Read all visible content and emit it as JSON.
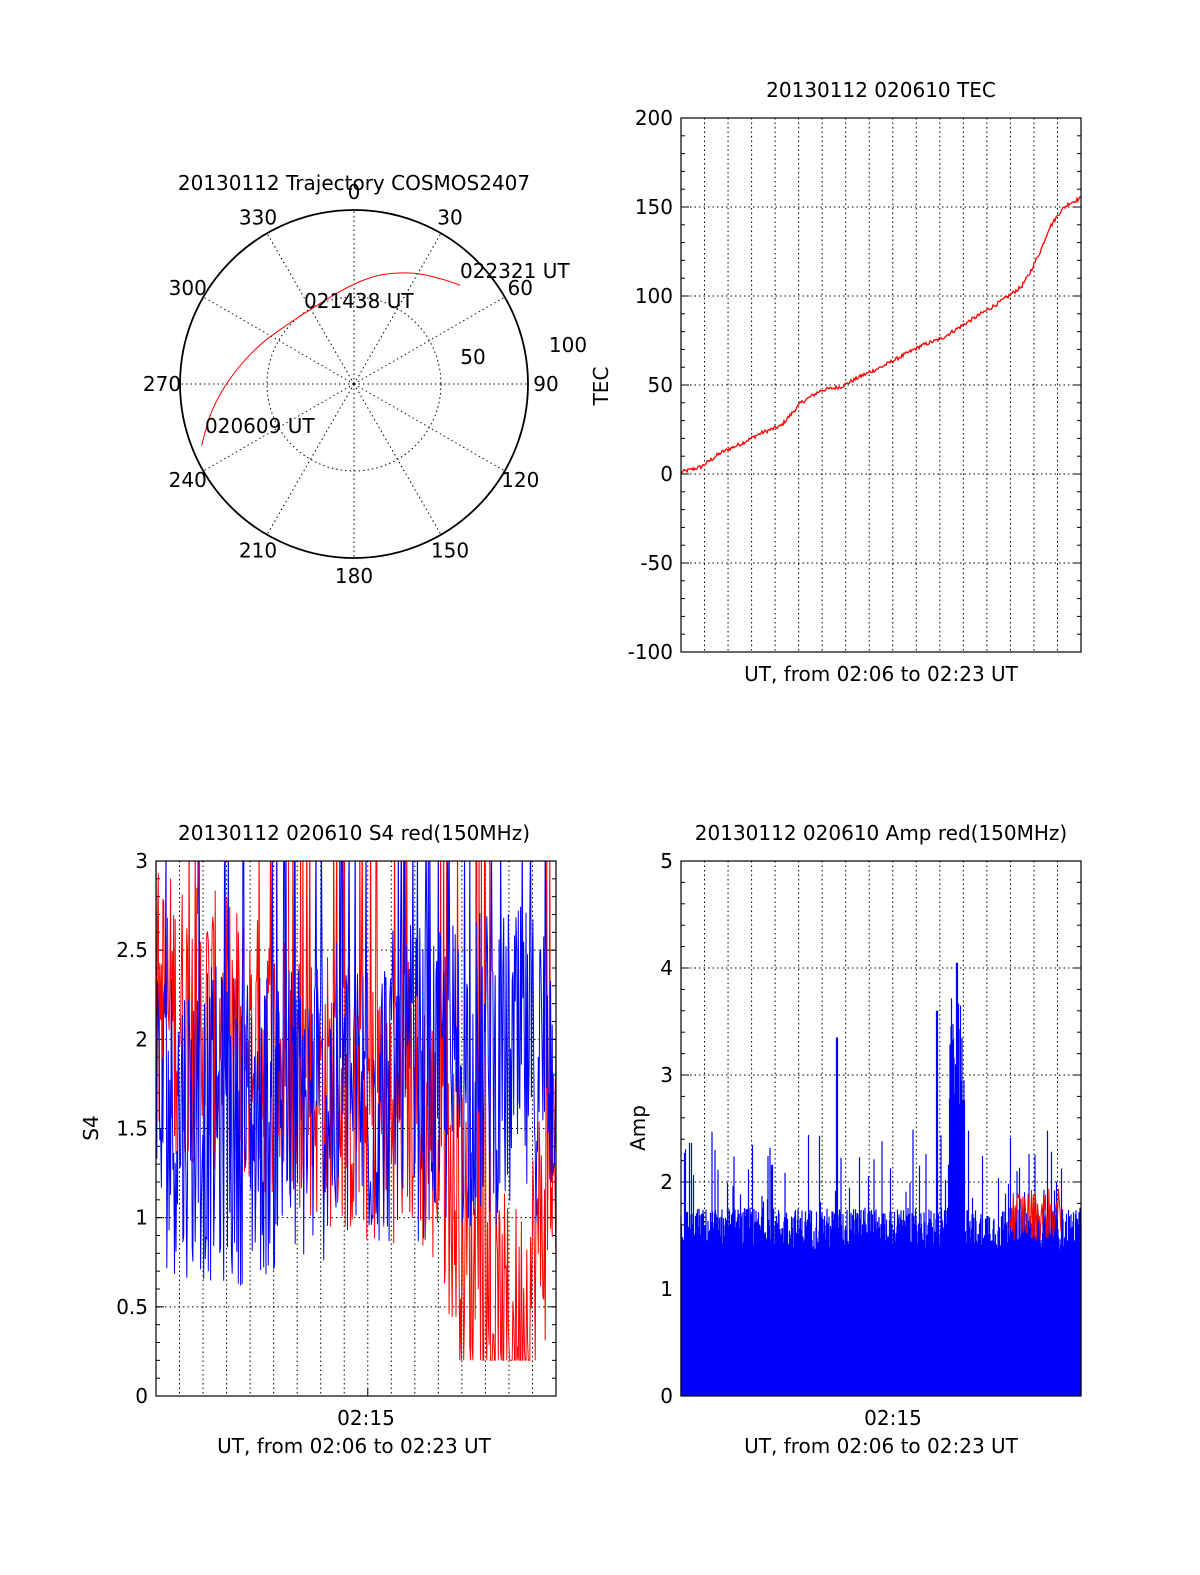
{
  "colors": {
    "red": "#ff0000",
    "blue": "#0000ff",
    "axis": "#000000"
  },
  "chart_data": [
    {
      "id": "trajectory",
      "type": "polar",
      "title": "20130112 Trajectory COSMOS2407",
      "azimuth_labels": [
        "0",
        "30",
        "60",
        "90",
        "120",
        "150",
        "180",
        "210",
        "240",
        "270",
        "300",
        "330"
      ],
      "radial_labels": [
        "50",
        "100"
      ],
      "elevation_range": [
        0,
        90
      ],
      "grid": true,
      "series": [
        {
          "color": "red",
          "points": [
            {
              "az": 248,
              "el": 5
            },
            {
              "az": 260,
              "el": 15
            },
            {
              "az": 275,
              "el": 27
            },
            {
              "az": 293,
              "el": 37
            },
            {
              "az": 313,
              "el": 44
            },
            {
              "az": 335,
              "el": 45
            },
            {
              "az": 355,
              "el": 40
            },
            {
              "az": 12,
              "el": 32
            },
            {
              "az": 27,
              "el": 25
            },
            {
              "az": 38,
              "el": 20
            },
            {
              "az": 47,
              "el": 15
            }
          ]
        }
      ],
      "annotations": [
        "022321 UT",
        "021438 UT",
        "020609 UT"
      ]
    },
    {
      "id": "tec",
      "type": "line",
      "title": "20130112 020610 TEC",
      "xlabel": "UT, from 02:06 to 02:23 UT",
      "ylabel": "TEC",
      "ylim": [
        -100,
        200
      ],
      "yticks": [
        "-100",
        "-50",
        "0",
        "50",
        "100",
        "150",
        "200"
      ],
      "grid": true,
      "series": [
        {
          "color": "red",
          "x": [
            0,
            0.05,
            0.1,
            0.15,
            0.2,
            0.25,
            0.3,
            0.35,
            0.4,
            0.45,
            0.5,
            0.55,
            0.6,
            0.65,
            0.7,
            0.75,
            0.8,
            0.85,
            0.87,
            0.9,
            0.92,
            0.95,
            0.97,
            1.0
          ],
          "y": [
            1,
            4,
            12,
            17,
            23,
            27,
            40,
            47,
            49,
            55,
            60,
            66,
            72,
            76,
            83,
            90,
            97,
            105,
            112,
            126,
            138,
            148,
            152,
            155
          ]
        }
      ]
    },
    {
      "id": "s4",
      "type": "line",
      "title": "20130112 020610 S4 red(150MHz)",
      "xlabel": "UT, from 02:06 to 02:23 UT",
      "ylabel": "S4",
      "xtick": "02:15",
      "ylim": [
        0,
        3
      ],
      "yticks": [
        "0",
        "0.5",
        "1",
        "1.5",
        "2",
        "2.5",
        "3"
      ],
      "grid": true,
      "series": [
        {
          "color": "red",
          "baseline": [
            2.2,
            2.1,
            2.0,
            1.9,
            1.8,
            1.7,
            1.6,
            1.7,
            1.3,
            0.4,
            0.3,
            1.4
          ],
          "spread": 0.8
        },
        {
          "color": "blue",
          "baseline": [
            1.6,
            1.55,
            1.5,
            1.55,
            1.6,
            1.65,
            1.7,
            1.75,
            1.8,
            1.85,
            1.85,
            1.9
          ],
          "spread": 0.9
        }
      ]
    },
    {
      "id": "amp",
      "type": "line",
      "title": "20130112 020610 Amp red(150MHz)",
      "xlabel": "UT, from 02:06 to 02:23 UT",
      "ylabel": "Amp",
      "xtick": "02:15",
      "ylim": [
        0,
        5
      ],
      "yticks": [
        "0",
        "1",
        "2",
        "3",
        "4",
        "5"
      ],
      "grid": true,
      "series": [
        {
          "color": "blue",
          "typical_peak": 1.6,
          "spikes": [
            {
              "x": 0.39,
              "y": 3.35
            },
            {
              "x": 0.69,
              "y": 4.05
            },
            {
              "x": 0.64,
              "y": 3.6
            }
          ]
        },
        {
          "color": "red",
          "segment": [
            0.82,
            0.95
          ],
          "level": 1.7
        }
      ]
    }
  ]
}
